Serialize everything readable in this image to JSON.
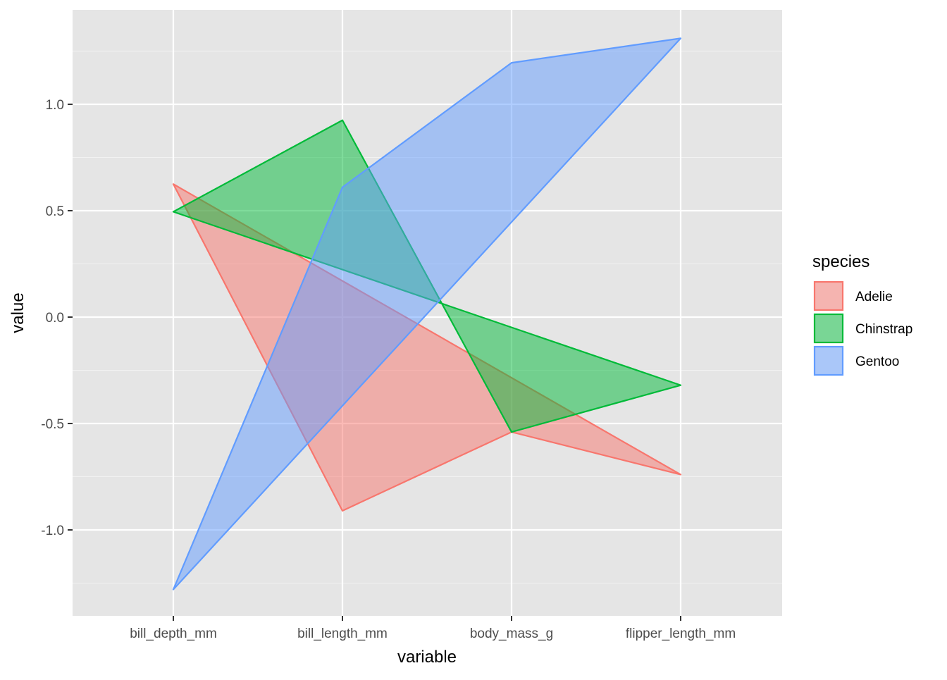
{
  "chart_data": {
    "type": "polygon",
    "title": "",
    "xlabel": "variable",
    "ylabel": "value",
    "categories": [
      "bill_depth_mm",
      "bill_length_mm",
      "body_mass_g",
      "flipper_length_mm"
    ],
    "yticks": [
      1.0,
      0.5,
      0.0,
      -0.5,
      -1.0
    ],
    "ytick_labels": [
      "1.0",
      "0.5",
      "0.0",
      "-0.5",
      "-1.0"
    ],
    "ylim": [
      -1.4,
      1.43
    ],
    "grid": true,
    "background": "#E5E5E5",
    "legend": {
      "title": "species",
      "position": "right"
    },
    "series": [
      {
        "name": "Adelie",
        "color": "#F8766D",
        "values": [
          0.625,
          -0.91,
          -0.54,
          -0.74
        ]
      },
      {
        "name": "Chinstrap",
        "color": "#00BA38",
        "values": [
          0.495,
          0.925,
          -0.54,
          -0.32
        ]
      },
      {
        "name": "Gentoo",
        "color": "#619CFF",
        "values": [
          -1.28,
          0.61,
          1.195,
          1.31
        ]
      }
    ]
  }
}
